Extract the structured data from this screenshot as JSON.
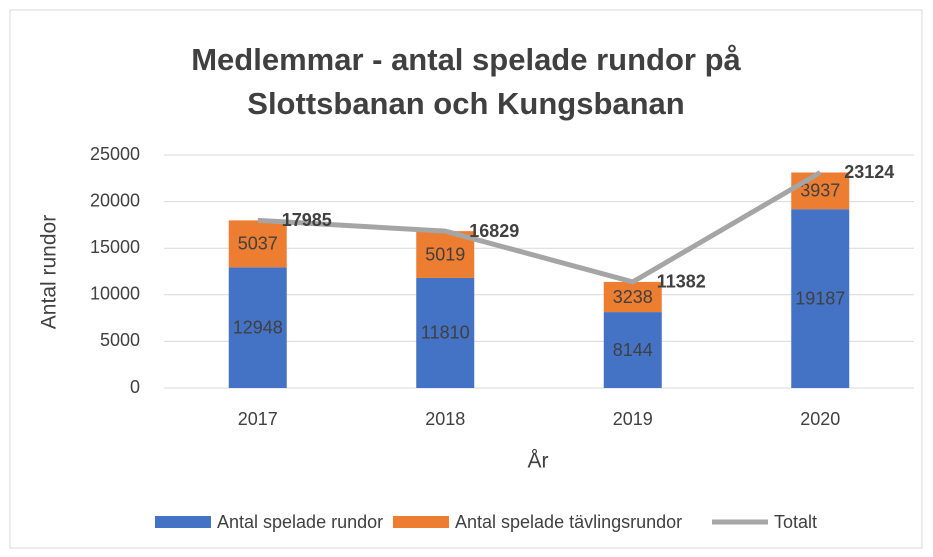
{
  "chart_data": {
    "type": "bar",
    "stacked": true,
    "title": "Medlemmar - antal spelade rundor på Slottsbanan och Kungsbanan",
    "x_label": "År",
    "y_label": "Antal rundor",
    "categories": [
      "2017",
      "2018",
      "2019",
      "2020"
    ],
    "series": [
      {
        "name": "Antal spelade rundor",
        "color": "#4472c4",
        "values": [
          12948,
          11810,
          8144,
          19187
        ]
      },
      {
        "name": "Antal spelade tävlingsrundor",
        "color": "#ed7d31",
        "values": [
          5037,
          5019,
          3238,
          3937
        ]
      },
      {
        "name": "Totalt",
        "color": "#a5a5a5",
        "type": "line",
        "values": [
          17985,
          16829,
          11382,
          23124
        ]
      }
    ],
    "ylim": [
      0,
      25000
    ],
    "yticks": [
      0,
      5000,
      10000,
      15000,
      20000,
      25000
    ],
    "grid": true,
    "legend": "bottom"
  }
}
